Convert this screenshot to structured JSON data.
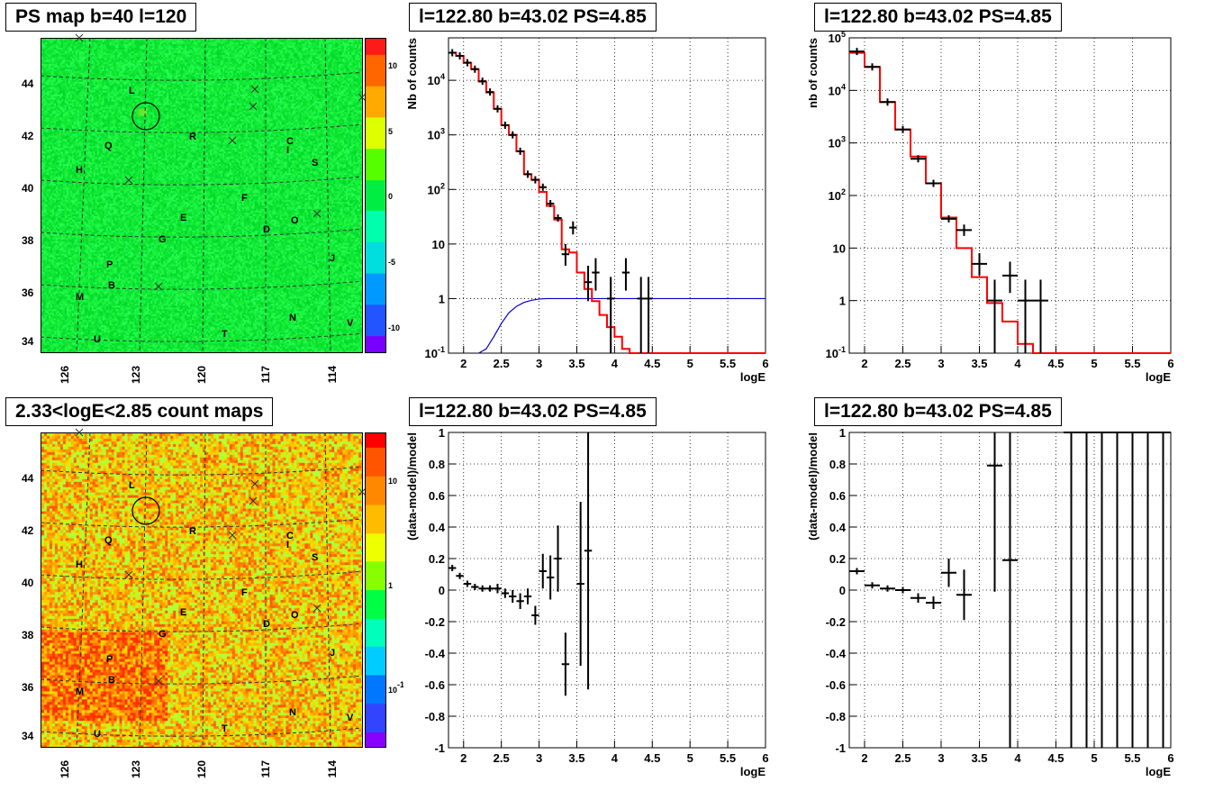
{
  "panels": {
    "psmap": {
      "title": "PS map b=40 l=120"
    },
    "countmap": {
      "title": "2.33<logE<2.85 count maps"
    },
    "spec1": {
      "title": "l=122.80 b=43.02 PS=4.85"
    },
    "spec2": {
      "title": "l=122.80 b=43.02 PS=4.85"
    },
    "res1": {
      "title": "l=122.80 b=43.02 PS=4.85"
    },
    "res2": {
      "title": "l=122.80 b=43.02 PS=4.85"
    }
  },
  "maps": {
    "lat_ticks": [
      "44",
      "42",
      "40",
      "38",
      "36",
      "34"
    ],
    "lon_ticks": [
      "126",
      "123",
      "120",
      "117",
      "114"
    ],
    "source_labels": [
      "L",
      "R",
      "C",
      "I",
      "Q",
      "H",
      "S",
      "F",
      "E",
      "D",
      "O",
      "G",
      "J",
      "P",
      "B",
      "M",
      "N",
      "V",
      "T",
      "U"
    ],
    "psmap_colorbar_ticks": [
      "10",
      "5",
      "0",
      "-5",
      "-10"
    ],
    "countmap_colorbar_ticks": [
      "10",
      "1",
      "10-1"
    ]
  },
  "chart_data": [
    {
      "id": "spec1",
      "type": "line",
      "title": "l=122.80 b=43.02 PS=4.85",
      "xlabel": "logE",
      "ylabel": "Nb of counts",
      "log_y": true,
      "xlim": [
        1.8,
        6.0
      ],
      "ylim": [
        0.1,
        60000
      ],
      "grid": true,
      "x_ticks": [
        "2",
        "2.5",
        "3",
        "3.5",
        "4",
        "4.5",
        "5",
        "5.5",
        "6"
      ],
      "y_ticks": [
        "10-1",
        "1",
        "10",
        "102",
        "103",
        "104"
      ],
      "bin_edges": [
        1.8,
        1.9,
        2.0,
        2.1,
        2.2,
        2.3,
        2.4,
        2.5,
        2.6,
        2.7,
        2.8,
        2.9,
        3.0,
        3.1,
        3.2,
        3.3,
        3.4,
        3.5,
        3.6,
        3.7,
        3.8,
        3.9,
        4.0,
        4.1,
        4.2,
        6.0
      ],
      "model": [
        32000,
        28000,
        21000,
        16000,
        9500,
        6000,
        3000,
        1500,
        1000,
        500,
        190,
        150,
        90,
        50,
        28,
        8,
        7,
        3,
        1.5,
        0.9,
        0.5,
        0.3,
        0.2,
        0.12,
        0.1
      ],
      "blue_curve": {
        "x": [
          2.2,
          2.3,
          2.4,
          2.5,
          2.6,
          2.7,
          2.8,
          2.9,
          3.0,
          3.1,
          3.2,
          6.0
        ],
        "y": [
          0.1,
          0.12,
          0.2,
          0.35,
          0.55,
          0.72,
          0.85,
          0.93,
          0.98,
          1.0,
          1.0,
          1.0
        ]
      },
      "points": [
        {
          "x": 1.85,
          "y": 32000
        },
        {
          "x": 1.95,
          "y": 28000
        },
        {
          "x": 2.05,
          "y": 21000
        },
        {
          "x": 2.15,
          "y": 16000
        },
        {
          "x": 2.25,
          "y": 9600
        },
        {
          "x": 2.35,
          "y": 6100
        },
        {
          "x": 2.45,
          "y": 3000
        },
        {
          "x": 2.55,
          "y": 1500
        },
        {
          "x": 2.65,
          "y": 1000
        },
        {
          "x": 2.75,
          "y": 500
        },
        {
          "x": 2.85,
          "y": 190
        },
        {
          "x": 2.95,
          "y": 150
        },
        {
          "x": 3.05,
          "y": 110
        },
        {
          "x": 3.15,
          "y": 55
        },
        {
          "x": 3.25,
          "y": 30
        },
        {
          "x": 3.35,
          "y": 6.5,
          "lo": 4,
          "hi": 10
        },
        {
          "x": 3.45,
          "y": 20,
          "lo": 15,
          "hi": 26
        },
        {
          "x": 3.65,
          "y": 2,
          "lo": 0.9,
          "hi": 4
        },
        {
          "x": 3.75,
          "y": 3,
          "lo": 1.4,
          "hi": 5.5
        },
        {
          "x": 3.95,
          "y": 1,
          "lo": 0.1,
          "hi": 2.5
        },
        {
          "x": 4.15,
          "y": 3,
          "lo": 1.4,
          "hi": 5.5
        },
        {
          "x": 4.35,
          "y": 1,
          "lo": 0.1,
          "hi": 2.5
        },
        {
          "x": 4.45,
          "y": 1,
          "lo": 0.1,
          "hi": 2.5
        }
      ]
    },
    {
      "id": "spec2",
      "type": "line",
      "title": "l=122.80 b=43.02 PS=4.85",
      "xlabel": "logE",
      "ylabel": "nb of counts",
      "log_y": true,
      "xlim": [
        1.8,
        6.0
      ],
      "ylim": [
        0.1,
        100000
      ],
      "grid": true,
      "x_ticks": [
        "2",
        "2.5",
        "3",
        "3.5",
        "4",
        "4.5",
        "5",
        "5.5",
        "6"
      ],
      "y_ticks": [
        "10-1",
        "1",
        "10",
        "102",
        "103",
        "104",
        "105"
      ],
      "bin_edges": [
        1.8,
        2.0,
        2.2,
        2.4,
        2.6,
        2.8,
        3.0,
        3.2,
        3.4,
        3.6,
        3.8,
        4.0,
        4.2,
        6.0
      ],
      "model": [
        52000,
        28000,
        6000,
        1800,
        550,
        170,
        38,
        10,
        2.8,
        0.9,
        0.4,
        0.15,
        0.1
      ],
      "points": [
        {
          "x": 1.9,
          "y": 55000
        },
        {
          "x": 2.1,
          "y": 28000
        },
        {
          "x": 2.3,
          "y": 6000
        },
        {
          "x": 2.5,
          "y": 1800
        },
        {
          "x": 2.7,
          "y": 500
        },
        {
          "x": 2.9,
          "y": 170
        },
        {
          "x": 3.1,
          "y": 36
        },
        {
          "x": 3.3,
          "y": 22,
          "lo": 17,
          "hi": 28
        },
        {
          "x": 3.5,
          "y": 5,
          "lo": 3,
          "hi": 8
        },
        {
          "x": 3.7,
          "y": 1,
          "lo": 0.1,
          "hi": 2.5
        },
        {
          "x": 3.9,
          "y": 3,
          "lo": 1.4,
          "hi": 5.5
        },
        {
          "x": 4.1,
          "y": 1,
          "lo": 0.1,
          "hi": 2.5
        },
        {
          "x": 4.3,
          "y": 1,
          "lo": 0.1,
          "hi": 2.5
        }
      ]
    },
    {
      "id": "res1",
      "type": "scatter",
      "title": "l=122.80 b=43.02 PS=4.85",
      "xlabel": "logE",
      "ylabel": "(data-model)/model",
      "xlim": [
        1.8,
        6.0
      ],
      "ylim": [
        -1,
        1
      ],
      "grid": true,
      "x_ticks": [
        "2",
        "2.5",
        "3",
        "3.5",
        "4",
        "4.5",
        "5",
        "5.5",
        "6"
      ],
      "y_ticks": [
        "1",
        "0.8",
        "0.6",
        "0.4",
        "0.2",
        "0",
        "-0.2",
        "-0.4",
        "-0.6",
        "-0.8",
        "-1"
      ],
      "half_width": 0.05,
      "points": [
        {
          "x": 1.85,
          "y": 0.14,
          "e": 0.02
        },
        {
          "x": 1.95,
          "y": 0.09,
          "e": 0.02
        },
        {
          "x": 2.05,
          "y": 0.04,
          "e": 0.02
        },
        {
          "x": 2.15,
          "y": 0.02,
          "e": 0.02
        },
        {
          "x": 2.25,
          "y": 0.01,
          "e": 0.02
        },
        {
          "x": 2.35,
          "y": 0.01,
          "e": 0.02
        },
        {
          "x": 2.45,
          "y": 0.01,
          "e": 0.03
        },
        {
          "x": 2.55,
          "y": -0.02,
          "e": 0.03
        },
        {
          "x": 2.65,
          "y": -0.04,
          "e": 0.04
        },
        {
          "x": 2.75,
          "y": -0.07,
          "e": 0.05
        },
        {
          "x": 2.85,
          "y": -0.04,
          "e": 0.05
        },
        {
          "x": 2.95,
          "y": -0.16,
          "e": 0.06
        },
        {
          "x": 3.05,
          "y": 0.12,
          "e": 0.11
        },
        {
          "x": 3.15,
          "y": 0.08,
          "e": 0.14
        },
        {
          "x": 3.25,
          "y": 0.2,
          "e": 0.21
        },
        {
          "x": 3.35,
          "y": -0.47,
          "e": 0.2
        },
        {
          "x": 3.55,
          "y": 0.04,
          "e": 0.52
        },
        {
          "x": 3.65,
          "y": 0.25,
          "e": 0.88
        }
      ]
    },
    {
      "id": "res2",
      "type": "scatter",
      "title": "l=122.80 b=43.02 PS=4.85",
      "xlabel": "logE",
      "ylabel": "(data-model)/model",
      "xlim": [
        1.8,
        6.0
      ],
      "ylim": [
        -1,
        1
      ],
      "grid": true,
      "x_ticks": [
        "2",
        "2.5",
        "3",
        "3.5",
        "4",
        "4.5",
        "5",
        "5.5",
        "6"
      ],
      "y_ticks": [
        "1",
        "0.8",
        "0.6",
        "0.4",
        "0.2",
        "0",
        "-0.2",
        "-0.4",
        "-0.6",
        "-0.8",
        "-1"
      ],
      "half_width": 0.1,
      "points": [
        {
          "x": 1.9,
          "y": 0.12,
          "e": 0.02
        },
        {
          "x": 2.1,
          "y": 0.03,
          "e": 0.02
        },
        {
          "x": 2.3,
          "y": 0.01,
          "e": 0.02
        },
        {
          "x": 2.5,
          "y": 0.0,
          "e": 0.02
        },
        {
          "x": 2.7,
          "y": -0.05,
          "e": 0.03
        },
        {
          "x": 2.9,
          "y": -0.08,
          "e": 0.04
        },
        {
          "x": 3.1,
          "y": 0.11,
          "e": 0.09
        },
        {
          "x": 3.3,
          "y": -0.03,
          "e": 0.16
        },
        {
          "x": 3.7,
          "y": 0.79,
          "e": 0.8
        },
        {
          "x": 3.9,
          "y": 0.19,
          "e": 1.3
        },
        {
          "x": 4.7,
          "y": 1.0,
          "e": 2
        },
        {
          "x": 4.9,
          "y": 1.0,
          "e": 2
        },
        {
          "x": 5.1,
          "y": 1.0,
          "e": 2
        },
        {
          "x": 5.3,
          "y": 1.0,
          "e": 2
        },
        {
          "x": 5.5,
          "y": 1.0,
          "e": 2
        },
        {
          "x": 5.7,
          "y": 1.0,
          "e": 2
        },
        {
          "x": 5.9,
          "y": 1.0,
          "e": 2
        }
      ]
    }
  ]
}
